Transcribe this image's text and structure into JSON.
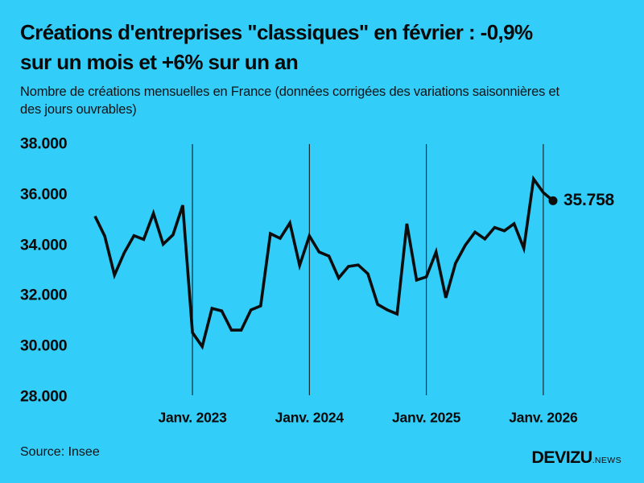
{
  "page": {
    "background_color": "#33cdf9",
    "text_color": "#0a0a0a"
  },
  "header": {
    "title_line1": "Créations d'entreprises \"classiques\" en février : -0,9%",
    "title_line2": "sur un mois et +6% sur un an",
    "subtitle_line1": "Nombre de créations mensuelles en France (données corrigées des variations saisonnières et",
    "subtitle_line2": "des jours ouvrables)"
  },
  "footer": {
    "source": "Source: Insee",
    "brand_name": "DEVIZU",
    "brand_suffix": ".NEWS"
  },
  "chart_data": {
    "type": "line",
    "title": "Créations d'entreprises \"classiques\" en février : -0,9% sur un mois et +6% sur un an",
    "subtitle": "Nombre de créations mensuelles en France (données corrigées des variations saisonnières et des jours ouvrables)",
    "source": "Insee",
    "line_color": "#0d0d0d",
    "grid_color": "#1c1c1c",
    "grid": "vertical-only",
    "legend": "none",
    "ylim": [
      28000,
      38000
    ],
    "x": [
      "2022-03",
      "2022-04",
      "2022-05",
      "2022-06",
      "2022-07",
      "2022-08",
      "2022-09",
      "2022-10",
      "2022-11",
      "2022-12",
      "2023-01",
      "2023-02",
      "2023-03",
      "2023-04",
      "2023-05",
      "2023-06",
      "2023-07",
      "2023-08",
      "2023-09",
      "2023-10",
      "2023-11",
      "2023-12",
      "2024-01",
      "2024-02",
      "2024-03",
      "2024-04",
      "2024-05",
      "2024-06",
      "2024-07",
      "2024-08",
      "2024-09",
      "2024-10",
      "2024-11",
      "2024-12",
      "2025-01",
      "2025-02",
      "2025-03",
      "2025-04",
      "2025-05",
      "2025-06",
      "2025-07",
      "2025-08",
      "2025-09",
      "2025-10",
      "2025-11",
      "2025-12",
      "2026-01",
      "2026-02"
    ],
    "values": [
      35150,
      34360,
      32820,
      33700,
      34380,
      34230,
      35260,
      34040,
      34410,
      35580,
      30540,
      29990,
      31500,
      31400,
      30640,
      30640,
      31440,
      31600,
      34460,
      34270,
      34880,
      33200,
      34370,
      33730,
      33570,
      32700,
      33160,
      33220,
      32870,
      31660,
      31440,
      31280,
      34850,
      32620,
      32750,
      33734,
      31920,
      33290,
      34000,
      34520,
      34250,
      34700,
      34570,
      34850,
      33880,
      36620,
      36083,
      35758
    ],
    "y_ticks": [
      {
        "label": "38.000",
        "value": 38000
      },
      {
        "label": "36.000",
        "value": 36000
      },
      {
        "label": "34.000",
        "value": 34000
      },
      {
        "label": "32.000",
        "value": 32000
      },
      {
        "label": "30.000",
        "value": 30000
      },
      {
        "label": "28.000",
        "value": 28000
      }
    ],
    "x_ticks": [
      {
        "label": "Janv. 2023",
        "index": 10
      },
      {
        "label": "Janv. 2024",
        "index": 22
      },
      {
        "label": "Janv. 2025",
        "index": 34
      },
      {
        "label": "Janv. 2026",
        "index": 46
      }
    ],
    "last_point_label": "35.758",
    "last_point_value": 35758
  }
}
